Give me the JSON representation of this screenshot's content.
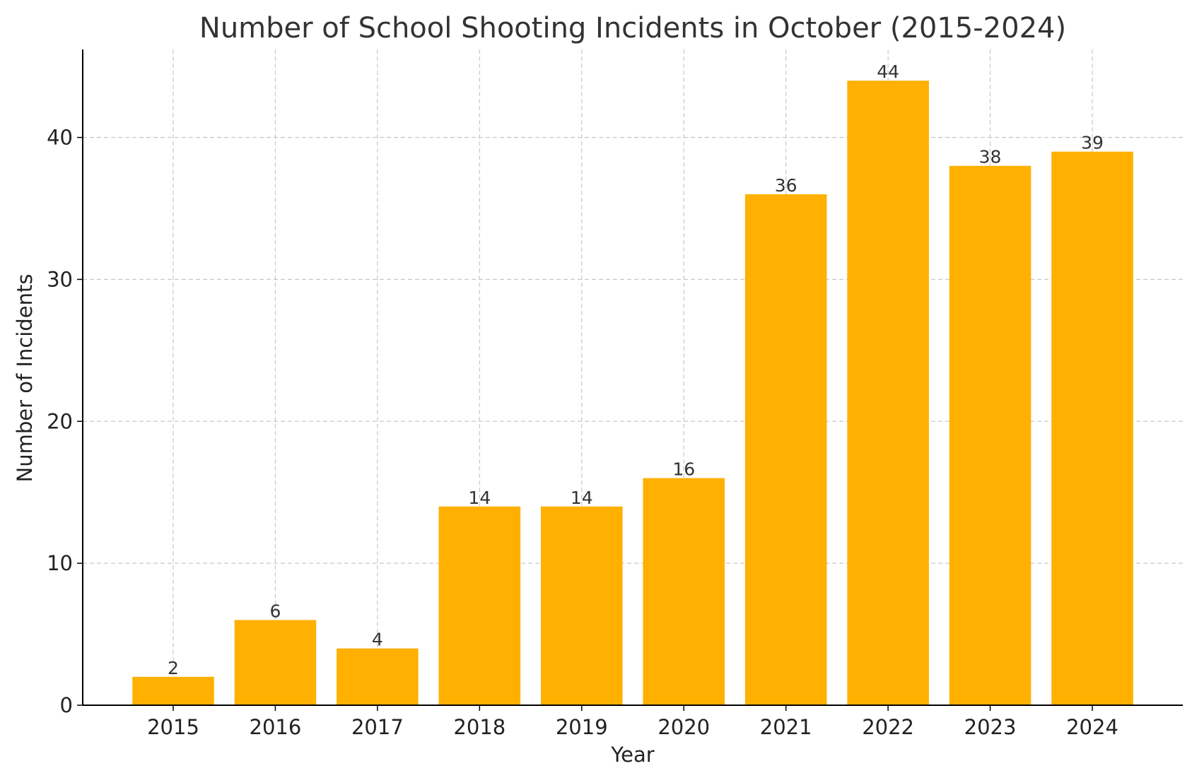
{
  "chart_data": {
    "type": "bar",
    "title": "Number of School Shooting Incidents in October (2015-2024)",
    "xlabel": "Year",
    "ylabel": "Number of Incidents",
    "categories": [
      "2015",
      "2016",
      "2017",
      "2018",
      "2019",
      "2020",
      "2021",
      "2022",
      "2023",
      "2024"
    ],
    "values": [
      2,
      6,
      4,
      14,
      14,
      16,
      36,
      44,
      38,
      39
    ],
    "ylim": [
      0,
      46.2
    ],
    "yticks": [
      0,
      10,
      20,
      30,
      40
    ],
    "grid": true,
    "data_labels": true,
    "bar_color": "#FFB000"
  }
}
